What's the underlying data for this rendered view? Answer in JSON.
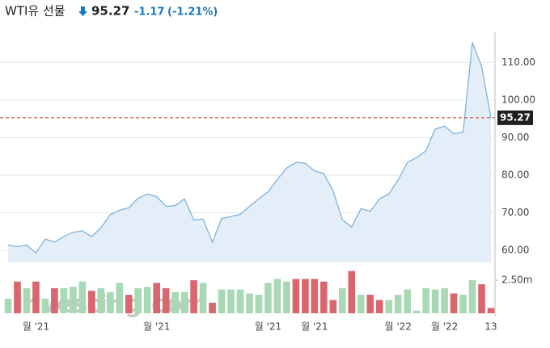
{
  "header": {
    "title": "WTI유 선물",
    "change": "-1.17",
    "change_pct": "(-1.21%)"
  },
  "chart_data": {
    "type": "area",
    "watermark": "Investing.com",
    "categories": [
      null,
      null,
      null,
      "월 '21",
      null,
      null,
      null,
      null,
      null,
      null,
      null,
      null,
      null,
      null,
      null,
      null,
      "월 '21",
      null,
      null,
      null,
      null,
      null,
      null,
      null,
      null,
      null,
      null,
      null,
      "월 '21",
      null,
      null,
      null,
      null,
      "월 '21",
      null,
      null,
      null,
      null,
      null,
      null,
      null,
      null,
      "월 '22",
      null,
      null,
      null,
      null,
      "월 '22",
      null,
      null,
      null,
      null,
      "13"
    ],
    "series": [
      {
        "color": "#7fb2dc",
        "fill": "#e4eef8",
        "values": [
          61.4,
          61.0,
          61.4,
          59.3,
          63.0,
          62.2,
          63.7,
          64.8,
          65.2,
          63.7,
          66.0,
          69.5,
          70.7,
          71.3,
          73.9,
          75.0,
          74.3,
          71.7,
          71.9,
          73.7,
          68.1,
          68.3,
          62.2,
          68.5,
          69.0,
          69.6,
          71.7,
          73.7,
          75.6,
          78.9,
          81.9,
          83.4,
          83.2,
          81.1,
          80.4,
          75.9,
          68.1,
          66.2,
          71.1,
          70.4,
          73.7,
          75.0,
          78.7,
          83.4,
          84.7,
          86.5,
          92.3,
          93.0,
          91.0,
          91.5,
          115.3,
          108.9,
          95.27
        ]
      }
    ],
    "last_price": 95.27,
    "last_price_color": "#c0392b",
    "ylim": [
      56.8,
      118
    ],
    "yticks": [
      {
        "value": 60,
        "label": "60.00"
      },
      {
        "value": 70,
        "label": "70.00"
      },
      {
        "value": 80,
        "label": "80.00"
      },
      {
        "value": 90,
        "label": "90.00"
      },
      {
        "value": 100,
        "label": "100.00"
      },
      {
        "value": 110,
        "label": "110.00"
      }
    ],
    "grid": true,
    "volume": {
      "up_color": "#a8d8b4",
      "down_color": "#d9666f",
      "values": [
        1.1,
        2.4,
        1.9,
        2.4,
        1.1,
        1.9,
        1.9,
        2.0,
        2.4,
        1.7,
        1.9,
        1.6,
        2.3,
        1.4,
        1.9,
        2.0,
        2.3,
        1.9,
        1.6,
        1.6,
        2.5,
        2.3,
        0.8,
        1.8,
        1.8,
        1.8,
        1.5,
        1.4,
        2.3,
        2.6,
        2.4,
        2.6,
        2.6,
        2.6,
        2.4,
        1.0,
        1.9,
        3.2,
        1.4,
        1.4,
        1.0,
        1.0,
        1.4,
        1.8,
        0.2,
        1.9,
        1.8,
        1.9,
        1.5,
        1.4,
        2.5,
        2.2,
        0.4
      ],
      "direction": [
        "up",
        "down",
        "up",
        "down",
        "up",
        "down",
        "up",
        "up",
        "up",
        "down",
        "up",
        "up",
        "up",
        "down",
        "up",
        "up",
        "down",
        "down",
        "up",
        "up",
        "down",
        "up",
        "down",
        "up",
        "up",
        "up",
        "up",
        "up",
        "up",
        "up",
        "up",
        "down",
        "down",
        "down",
        "down",
        "down",
        "up",
        "down",
        "up",
        "down",
        "down",
        "up",
        "up",
        "up",
        "up",
        "up",
        "up",
        "up",
        "down",
        "up",
        "up",
        "down",
        "down"
      ],
      "ylim": [
        0,
        3.3
      ],
      "yticks": [
        {
          "value": 2.5,
          "label": "2.50m"
        }
      ]
    }
  }
}
